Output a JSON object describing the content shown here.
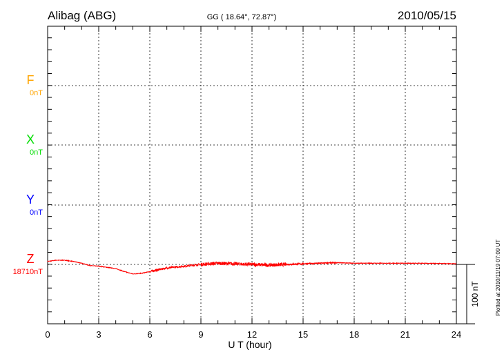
{
  "header": {
    "station": "Alibag (ABG)",
    "coords": "GG ( 18.64°,  72.87°)",
    "date": "2010/05/15"
  },
  "footer": {
    "plotted": "Plotted at 2010/11/19 07:09 UT"
  },
  "chart_data": {
    "type": "line",
    "xlabel": "U T (hour)",
    "xlim": [
      0,
      24
    ],
    "xticks": [
      "0",
      "3",
      "6",
      "9",
      "12",
      "15",
      "18",
      "21",
      "24"
    ],
    "grid": true,
    "scale_bar": "100 nT",
    "components": [
      {
        "name": "F",
        "baseline": "0nT",
        "color": "#ffa500"
      },
      {
        "name": "X",
        "baseline": "0nT",
        "color": "#00dd00"
      },
      {
        "name": "Y",
        "baseline": "0nT",
        "color": "#0000ff"
      },
      {
        "name": "Z",
        "baseline": "18710nT",
        "color": "#ff0000"
      }
    ],
    "series": [
      {
        "name": "Z",
        "color": "#ff0000",
        "x": [
          0,
          0.5,
          1,
          1.5,
          2,
          2.5,
          3,
          3.5,
          4,
          4.5,
          5,
          5.5,
          6,
          7,
          8,
          9,
          10,
          11,
          12,
          13,
          14,
          15,
          16,
          17,
          18,
          20,
          22,
          24
        ],
        "y_nT": [
          5,
          7,
          7,
          5,
          2,
          -2,
          -3,
          -5,
          -7,
          -12,
          -16,
          -15,
          -12,
          -6,
          -3,
          0,
          2,
          1,
          0,
          -1,
          0,
          1,
          2,
          3,
          2,
          2,
          2,
          1
        ]
      }
    ]
  }
}
